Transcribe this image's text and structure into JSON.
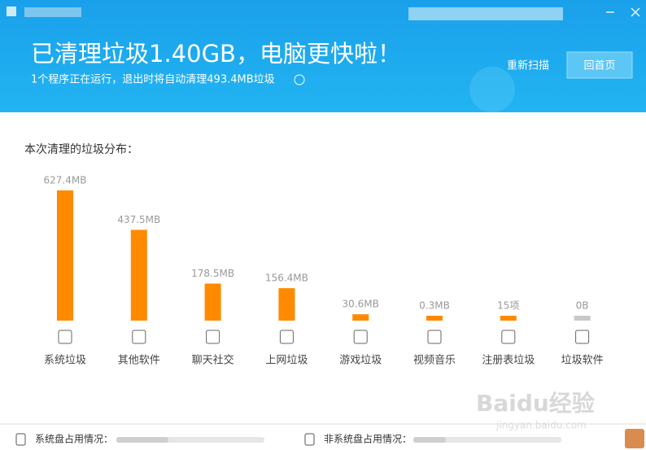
{
  "header": {
    "title": "已清理垃圾1.40GB，电脑更快啦！",
    "subtitle": "1个程序正在运行，退出时将自动清理493.4MB垃圾",
    "rescan": "重新扫描",
    "home": "回首页"
  },
  "chart_data": {
    "type": "bar",
    "title": "本次清理的垃圾分布：",
    "categories": [
      "系统垃圾",
      "其他软件",
      "聊天社交",
      "上网垃圾",
      "游戏垃圾",
      "视频音乐",
      "注册表垃圾",
      "垃圾软件"
    ],
    "values": [
      627.4,
      437.5,
      178.5,
      156.4,
      30.6,
      0.3,
      15,
      0
    ],
    "value_labels": [
      "627.4MB",
      "437.5MB",
      "178.5MB",
      "156.4MB",
      "30.6MB",
      "0.3MB",
      "15项",
      "0B"
    ],
    "color": "#ff8a00"
  },
  "footer": {
    "system_disk": "系统盘占用情况：",
    "other_disk": "非系统盘占用情况："
  },
  "watermark": {
    "brand": "Baidu经验",
    "url": "jingyan.baidu.com"
  }
}
